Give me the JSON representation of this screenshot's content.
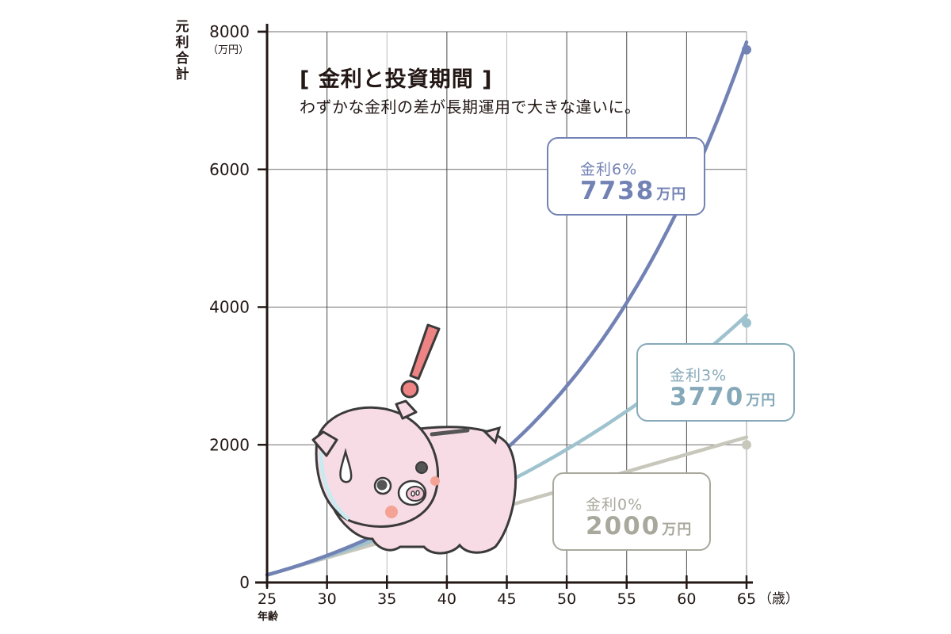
{
  "title": "[ 金利と投資期間 ]",
  "subtitle": "わずかな金利の差が長期運用で大きな違いに。",
  "y_axis": {
    "label": "元利合計",
    "unit": "（万円）",
    "ticks": [
      "0",
      "2000",
      "4000",
      "6000",
      "8000"
    ]
  },
  "x_axis": {
    "label": "年齢",
    "unit": "（歳）",
    "ticks": [
      "25",
      "30",
      "35",
      "40",
      "45",
      "50",
      "55",
      "60",
      "65"
    ]
  },
  "callouts": [
    {
      "rate": "金利6%",
      "amount": "7738",
      "unit": "万円",
      "color": "#7282b4"
    },
    {
      "rate": "金利3%",
      "amount": "3770",
      "unit": "万円",
      "color": "#86a9b9"
    },
    {
      "rate": "金利0%",
      "amount": "2000",
      "unit": "万円",
      "color": "#a9a89c"
    }
  ],
  "illustration": {
    "name": "surprised piggy bank with exclamation mark"
  },
  "chart_data": {
    "type": "line",
    "title": "金利と投資期間",
    "subtitle": "わずかな金利の差が長期運用で大きな違いに。",
    "xlabel": "年齢（歳）",
    "ylabel": "元利合計（万円）",
    "xlim": [
      25,
      65
    ],
    "ylim": [
      0,
      8000
    ],
    "x": [
      25,
      30,
      35,
      40,
      45,
      50,
      55,
      60,
      65
    ],
    "series": [
      {
        "name": "金利6%",
        "color": "#7282b4",
        "values": [
          0,
          282,
          659,
          1164,
          1839,
          2742,
          3952,
          5570,
          7738
        ]
      },
      {
        "name": "金利3%",
        "color": "#9fc2cf",
        "values": [
          0,
          265,
          574,
          930,
          1344,
          1823,
          2378,
          3022,
          3770
        ]
      },
      {
        "name": "金利0%",
        "color": "#c8c7bb",
        "values": [
          0,
          250,
          500,
          750,
          1000,
          1250,
          1500,
          1750,
          2000
        ]
      }
    ],
    "end_labels": {
      "金利6%": 7738,
      "金利3%": 3770,
      "金利0%": 2000
    },
    "grid": true,
    "legend": "callout boxes at right"
  }
}
